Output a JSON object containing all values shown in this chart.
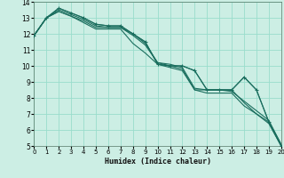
{
  "xlabel": "Humidex (Indice chaleur)",
  "bg_color": "#cceee4",
  "grid_color": "#99ddcc",
  "line_color": "#1a6e5e",
  "xlim": [
    0,
    20
  ],
  "ylim": [
    5,
    14
  ],
  "yticks": [
    5,
    6,
    7,
    8,
    9,
    10,
    11,
    12,
    13,
    14
  ],
  "xticks": [
    0,
    1,
    2,
    3,
    4,
    5,
    6,
    7,
    8,
    9,
    10,
    11,
    12,
    13,
    14,
    15,
    16,
    17,
    18,
    19,
    20
  ],
  "series": [
    [
      11.9,
      13.0,
      13.6,
      13.3,
      13.0,
      12.6,
      12.5,
      12.5,
      12.0,
      11.5,
      10.1,
      10.0,
      10.0,
      9.7,
      8.5,
      8.5,
      8.5,
      9.3,
      8.5,
      6.5,
      5.0
    ],
    [
      11.9,
      13.0,
      13.5,
      13.2,
      12.9,
      12.5,
      12.4,
      12.4,
      11.9,
      11.3,
      10.2,
      10.1,
      9.9,
      8.6,
      8.5,
      8.5,
      8.4,
      7.8,
      7.2,
      6.6,
      5.1
    ],
    [
      11.9,
      13.0,
      13.4,
      13.1,
      12.8,
      12.4,
      12.4,
      12.4,
      12.0,
      11.4,
      10.2,
      10.0,
      9.8,
      8.5,
      8.5,
      8.5,
      8.5,
      7.7,
      7.0,
      6.5,
      5.1
    ],
    [
      11.9,
      13.0,
      13.4,
      13.1,
      12.7,
      12.3,
      12.3,
      12.3,
      11.4,
      10.8,
      10.1,
      9.9,
      9.7,
      8.5,
      8.3,
      8.3,
      8.3,
      7.5,
      7.0,
      6.4,
      5.0
    ]
  ],
  "marker_series": 0,
  "marker_x": [
    1,
    2,
    3,
    4,
    5,
    6,
    7,
    8,
    9,
    10,
    11,
    12,
    13,
    14,
    15,
    16,
    17,
    18,
    19,
    20
  ]
}
